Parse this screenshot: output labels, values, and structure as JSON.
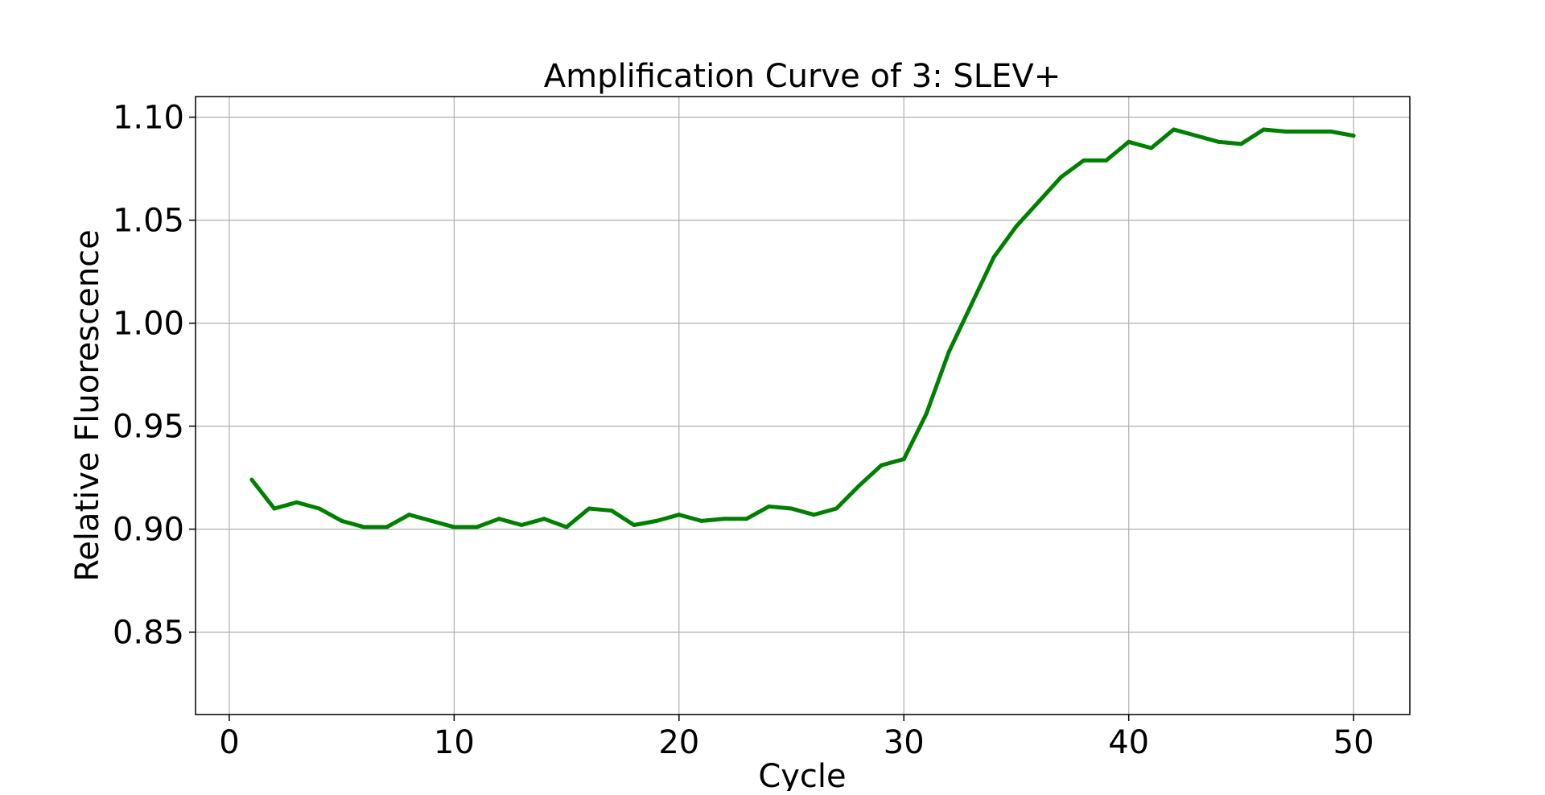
{
  "chart_data": {
    "type": "line",
    "title": "Amplification Curve of 3: SLEV+",
    "xlabel": "Cycle",
    "ylabel": "Relative Fluorescence",
    "xlim": [
      -1.5,
      52.5
    ],
    "ylim": [
      0.81,
      1.11
    ],
    "xticks": [
      0,
      10,
      20,
      30,
      40,
      50
    ],
    "xtick_labels": [
      "0",
      "10",
      "20",
      "30",
      "40",
      "50"
    ],
    "yticks": [
      0.85,
      0.9,
      0.95,
      1.0,
      1.05,
      1.1
    ],
    "ytick_labels": [
      "0.85",
      "0.90",
      "0.95",
      "1.00",
      "1.05",
      "1.10"
    ],
    "grid": true,
    "series": [
      {
        "color": "#008000",
        "x": [
          1,
          2,
          3,
          4,
          5,
          6,
          7,
          8,
          9,
          10,
          11,
          12,
          13,
          14,
          15,
          16,
          17,
          18,
          19,
          20,
          21,
          22,
          23,
          24,
          25,
          26,
          27,
          28,
          29,
          30,
          31,
          32,
          33,
          34,
          35,
          36,
          37,
          38,
          39,
          40,
          41,
          42,
          43,
          44,
          45,
          46,
          47,
          48,
          49,
          50
        ],
        "y": [
          0.924,
          0.91,
          0.913,
          0.91,
          0.904,
          0.901,
          0.901,
          0.907,
          0.904,
          0.901,
          0.901,
          0.905,
          0.902,
          0.905,
          0.901,
          0.91,
          0.909,
          0.902,
          0.904,
          0.907,
          0.904,
          0.905,
          0.905,
          0.911,
          0.91,
          0.907,
          0.91,
          0.921,
          0.931,
          0.934,
          0.956,
          0.986,
          1.009,
          1.032,
          1.047,
          1.059,
          1.071,
          1.079,
          1.079,
          1.088,
          1.085,
          1.094,
          1.091,
          1.088,
          1.087,
          1.094,
          1.093,
          1.093,
          1.093,
          1.091
        ]
      }
    ]
  }
}
